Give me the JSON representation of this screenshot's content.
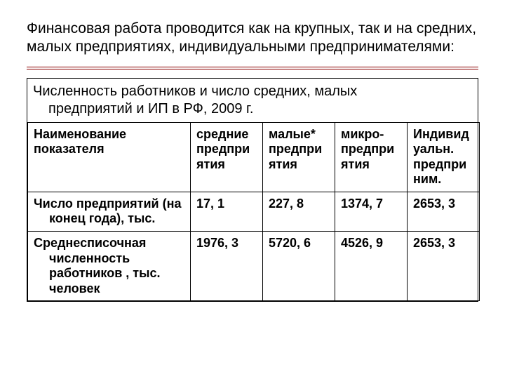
{
  "heading": "Финансовая работа проводится как на крупных, так и на  средних, малых предприятиях, индивидуальными предпринимателями:",
  "table": {
    "title_line1": "Численность работников и число  средних, малых",
    "title_line2": "предприятий и ИП в РФ, 2009 г.",
    "columns": [
      "Наименование показателя",
      "средние предприятия",
      "малые* предприятия",
      "микро-предприятия",
      "Индивидуальн. предприним."
    ],
    "col_name_label_line1": "Наименование",
    "col_name_label_line2": "показателя",
    "rows": [
      {
        "label_line1": "Число предприятий (на",
        "label_line2": "конец года), тыс.",
        "values": [
          "17, 1",
          "227, 8",
          "1374, 7",
          "2653, 3"
        ]
      },
      {
        "label_line1": "Среднесписочная",
        "label_line2": "численность работников , тыс. человек",
        "values": [
          "1976, 3",
          "5720, 6",
          "4526, 9",
          "2653, 3"
        ]
      }
    ]
  },
  "style": {
    "divider_color": "#8b0000",
    "border_color": "#000000",
    "background_color": "#ffffff",
    "text_color": "#000000",
    "heading_fontsize": 21,
    "cell_fontsize": 18,
    "col_name_width": 232,
    "col_data_width": 103
  }
}
